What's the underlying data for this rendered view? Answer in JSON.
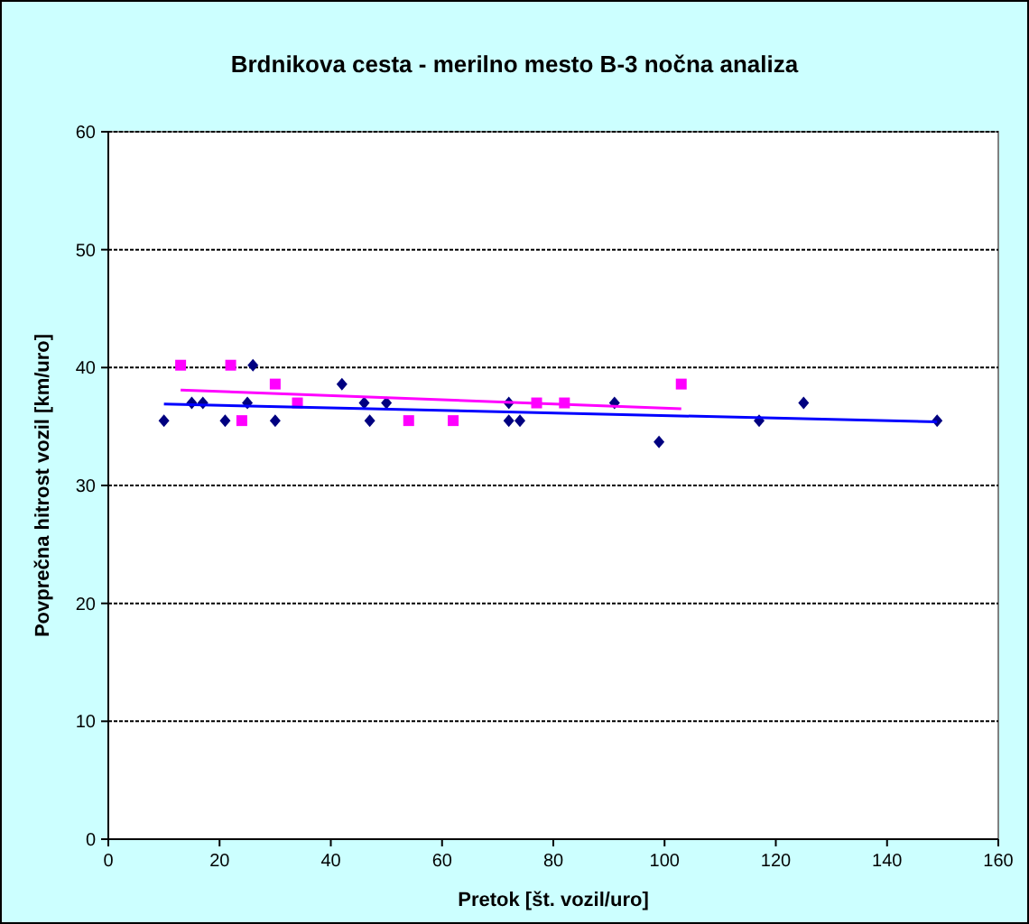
{
  "chart_data": {
    "type": "scatter",
    "title": "Brdnikova cesta - merilno mesto B-3 nočna analiza",
    "xlabel": "Pretok [št. vozil/uro]",
    "ylabel": "Povprečna hitrost vozil [km/uro]",
    "xlim": [
      0,
      160
    ],
    "xticks": [
      0,
      20,
      40,
      60,
      80,
      100,
      120,
      140,
      160
    ],
    "ylim": [
      0,
      60
    ],
    "yticks": [
      0,
      10,
      20,
      30,
      40,
      50,
      60
    ],
    "grid": "y",
    "series": [
      {
        "marker": "diamond",
        "color": "#000080",
        "x": [
          10,
          15,
          17,
          21,
          25,
          26,
          30,
          42,
          46,
          47,
          50,
          72,
          72,
          74,
          91,
          99,
          117,
          125,
          149
        ],
        "values": [
          35.5,
          37,
          37,
          35.5,
          37,
          40.2,
          35.5,
          38.6,
          37,
          35.5,
          37,
          37,
          35.5,
          35.5,
          37,
          33.7,
          35.5,
          37,
          35.5
        ]
      },
      {
        "marker": "square",
        "color": "#ff00ff",
        "x": [
          13,
          22,
          24,
          30,
          34,
          54,
          62,
          77,
          82,
          103
        ],
        "values": [
          40.2,
          40.2,
          35.5,
          38.6,
          37,
          35.5,
          35.5,
          37,
          37,
          38.6
        ]
      },
      {
        "type": "line",
        "marker": "none",
        "color": "#0000ff",
        "x": [
          10,
          149
        ],
        "values": [
          36.9,
          35.4
        ]
      },
      {
        "type": "line",
        "marker": "none",
        "color": "#ff00ff",
        "x": [
          13,
          103
        ],
        "values": [
          38.1,
          36.5
        ]
      }
    ]
  }
}
